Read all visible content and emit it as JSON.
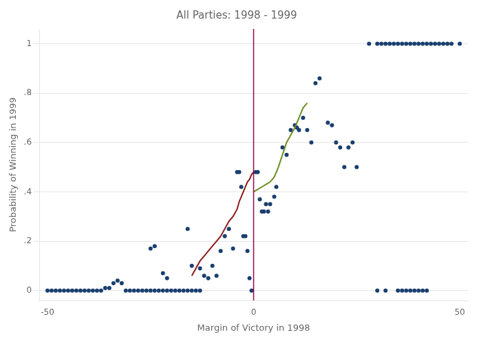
{
  "chart_data": {
    "type": "scatter",
    "title": "All Parties: 1998 - 1999",
    "xlabel": "Margin of Victory in 1998",
    "ylabel": "Probability of Winning in 1999",
    "xlim": [
      -52,
      52
    ],
    "ylim": [
      -0.04,
      1.06
    ],
    "xticks": [
      -50,
      0,
      50
    ],
    "yticks": [
      0,
      {
        "value": 0.2,
        "label": ".2"
      },
      {
        "value": 0.4,
        "label": ".4"
      },
      {
        "value": 0.6,
        "label": ".6"
      },
      {
        "value": 0.8,
        "label": ".8"
      },
      1
    ],
    "grid": "y",
    "series": [
      {
        "type": "scatter",
        "color": "#1a3f6f",
        "x": [
          -50,
          -49,
          -48,
          -47,
          -46,
          -45,
          -44,
          -43,
          -42,
          -41,
          -40,
          -39,
          -38,
          -37,
          -36,
          -35,
          -34,
          -33,
          -32,
          -31,
          -30,
          -29,
          -28,
          -27,
          -26,
          -25,
          -24,
          -23,
          -22,
          -21,
          -20,
          -19,
          -18,
          -17,
          -16,
          -15,
          -14,
          -13,
          -25,
          -24,
          -22,
          -21,
          -16,
          -15,
          -13,
          -12,
          -11,
          -10,
          -9,
          -8,
          -7,
          -6,
          -5,
          -4,
          -3.5,
          -3,
          -2.5,
          -2,
          -1.5,
          -1,
          -0.5,
          0.5,
          1,
          1.5,
          2,
          2.5,
          3,
          3.5,
          4,
          5,
          5.5,
          7,
          8,
          9,
          10,
          10.5,
          11,
          12,
          13,
          14,
          15,
          16,
          18,
          19,
          20,
          21,
          22,
          23,
          24,
          25,
          28,
          30,
          31,
          32,
          33,
          34,
          35,
          36,
          37,
          38,
          39,
          40,
          41,
          42,
          43,
          44,
          45,
          46,
          47,
          48,
          50,
          30,
          32,
          35,
          36,
          37,
          38,
          39,
          40,
          41,
          42
        ],
        "values": [
          0.0,
          0.0,
          0.0,
          0.0,
          0.0,
          0.0,
          0.0,
          0.0,
          0.0,
          0.0,
          0.0,
          0.0,
          0.0,
          0.0,
          0.01,
          0.01,
          0.03,
          0.04,
          0.03,
          0.0,
          0.0,
          0.0,
          0.0,
          0.0,
          0.0,
          0.0,
          0.0,
          0.0,
          0.0,
          0.0,
          0.0,
          0.0,
          0.0,
          0.0,
          0.0,
          0.0,
          0.0,
          0.0,
          0.17,
          0.18,
          0.07,
          0.05,
          0.25,
          0.1,
          0.09,
          0.06,
          0.05,
          0.1,
          0.06,
          0.16,
          0.22,
          0.25,
          0.17,
          0.48,
          0.48,
          0.42,
          0.22,
          0.22,
          0.16,
          0.05,
          0.0,
          0.48,
          0.48,
          0.37,
          0.32,
          0.32,
          0.35,
          0.32,
          0.35,
          0.38,
          0.42,
          0.58,
          0.55,
          0.65,
          0.67,
          0.66,
          0.65,
          0.7,
          0.65,
          0.6,
          0.84,
          0.86,
          0.68,
          0.67,
          0.6,
          0.58,
          0.5,
          0.58,
          0.6,
          0.5,
          1.0,
          1.0,
          1.0,
          1.0,
          1.0,
          1.0,
          1.0,
          1.0,
          1.0,
          1.0,
          1.0,
          1.0,
          1.0,
          1.0,
          1.0,
          1.0,
          1.0,
          1.0,
          1.0,
          1.0,
          1.0,
          0.0,
          0.0,
          0.0,
          0.0,
          0.0,
          0.0,
          0.0,
          0.0,
          0.0,
          0.0
        ]
      },
      {
        "type": "line",
        "color": "#8b1a1a",
        "x": [
          -15,
          -14,
          -13,
          -12,
          -11,
          -10,
          -9,
          -8,
          -7,
          -6,
          -5,
          -4,
          -3.5,
          -3,
          -2.5,
          -2,
          -1.5,
          -1,
          -0.5,
          0
        ],
        "values": [
          0.06,
          0.09,
          0.12,
          0.14,
          0.16,
          0.18,
          0.2,
          0.22,
          0.25,
          0.28,
          0.3,
          0.33,
          0.36,
          0.38,
          0.4,
          0.42,
          0.44,
          0.45,
          0.47,
          0.48
        ]
      },
      {
        "type": "line",
        "color": "#6b8e23",
        "x": [
          0,
          1,
          2,
          3,
          4,
          5,
          6,
          7,
          8,
          9,
          10,
          11,
          12,
          13
        ],
        "values": [
          0.4,
          0.41,
          0.42,
          0.43,
          0.44,
          0.46,
          0.5,
          0.55,
          0.6,
          0.63,
          0.66,
          0.7,
          0.74,
          0.76
        ]
      }
    ],
    "vlines": [
      {
        "x": 0,
        "color": "#99004c"
      }
    ]
  }
}
